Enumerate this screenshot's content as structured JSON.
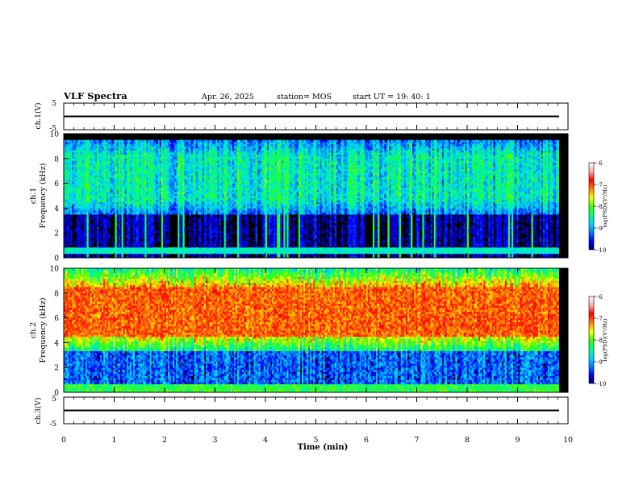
{
  "header": {
    "title": "VLF Spectra",
    "date": "Apr. 26, 2025",
    "station": "station= MOS",
    "start": "start  UT =   19: 40: 1"
  },
  "colors": {
    "background": "#000000",
    "colorscale": [
      "#00006e",
      "#0000ff",
      "#0080ff",
      "#00d8ff",
      "#00ff80",
      "#40ff00",
      "#ffff00",
      "#ff8000",
      "#ff0000",
      "#ffb0b0",
      "#ffffff"
    ]
  },
  "chart_data": [
    {
      "type": "line",
      "panel": "ch1-voltage",
      "ylabel": "ch.1(V)",
      "ylim": [
        -5,
        5
      ],
      "yticks": [
        "5",
        "-5"
      ],
      "xlim": [
        0,
        10
      ],
      "x": [
        0,
        10
      ],
      "values": [
        0,
        0
      ]
    },
    {
      "type": "heatmap",
      "panel": "ch1-spectrogram",
      "ylabel": "ch.1\nFrequency (kHz)",
      "ylim": [
        0,
        10
      ],
      "yticks": [
        "0",
        "2",
        "4",
        "6",
        "8",
        "10"
      ],
      "xlim": [
        0,
        9.83
      ],
      "band_kHz": [
        3.5,
        9.5
      ],
      "band_level_log": -8.6,
      "colorbar": {
        "label": "log(PSD)(V²/Hz)",
        "range": [
          -10,
          -6
        ],
        "ticks": [
          "-6",
          "-7",
          "-8",
          "-9",
          "-10"
        ]
      }
    },
    {
      "type": "heatmap",
      "panel": "ch2-spectrogram",
      "ylabel": "ch.2\nFrequency (kHz)",
      "ylim": [
        0,
        10
      ],
      "yticks": [
        "0",
        "2",
        "4",
        "6",
        "8",
        "10"
      ],
      "xlim": [
        0,
        9.83
      ],
      "band_kHz": [
        4.5,
        8.5
      ],
      "band_level_log": -6.8,
      "colorbar": {
        "label": "log(PSD)(V²/Hz)",
        "range": [
          -10,
          -6
        ],
        "ticks": [
          "-6",
          "-7",
          "-8",
          "-9",
          "-10"
        ]
      }
    },
    {
      "type": "line",
      "panel": "ch3-voltage",
      "ylabel": "ch.3(V)",
      "ylim": [
        -5,
        5
      ],
      "yticks": [
        "5",
        "-5"
      ],
      "xlim": [
        0,
        10
      ],
      "x": [
        0,
        10
      ],
      "values": [
        0,
        0
      ]
    }
  ],
  "xaxis": {
    "label": "Time (min)",
    "ticks": [
      "0",
      "1",
      "2",
      "3",
      "4",
      "5",
      "6",
      "7",
      "8",
      "9",
      "10"
    ],
    "range": [
      0,
      10
    ]
  }
}
